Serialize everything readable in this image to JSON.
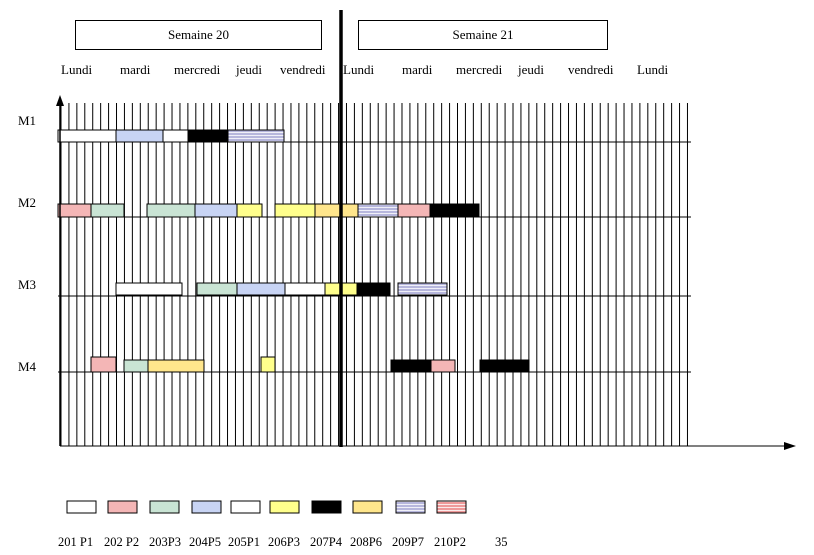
{
  "weeks": [
    "Semaine 20",
    "Semaine 21"
  ],
  "days": [
    "Lundi",
    "mardi",
    "mercredi",
    "jeudi",
    "vendredi",
    "Lundi",
    "mardi",
    "mercredi",
    "jeudi",
    "vendredi",
    "Lundi"
  ],
  "machines": [
    "M1",
    "M2",
    "M3",
    "M4"
  ],
  "colors": {
    "white": "#ffffff",
    "pink": "#f4b6b6",
    "mint": "#c9e4d4",
    "blue": "#c8d4f4",
    "yellow": "#ffff8c",
    "black": "#000000",
    "gold": "#ffe68c",
    "lavender_striped": "#b7b7dd",
    "red_striped": "#ef9a9a"
  },
  "legend": [
    {
      "code": "201 P1",
      "color": "white"
    },
    {
      "code": "202 P2",
      "color": "pink"
    },
    {
      "code": "203P3",
      "color": "mint"
    },
    {
      "code": "204P5",
      "color": "blue"
    },
    {
      "code": "205P1",
      "color": "white"
    },
    {
      "code": "206P3",
      "color": "yellow"
    },
    {
      "code": "207P4",
      "color": "black"
    },
    {
      "code": "208P6",
      "color": "gold"
    },
    {
      "code": "209P7",
      "color": "lavender_striped"
    },
    {
      "code": "210P2",
      "color": "red_striped"
    }
  ],
  "legend_extra": "35"
}
